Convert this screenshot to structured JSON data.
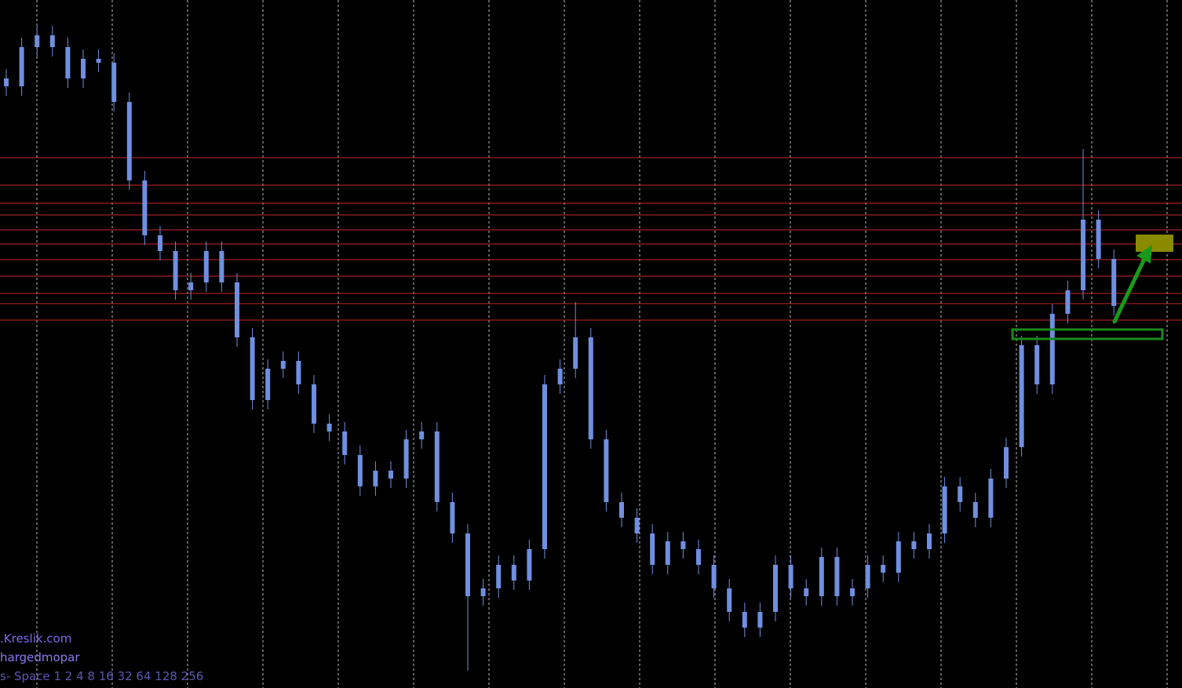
{
  "chart_data": {
    "type": "candlestick",
    "open": [
      777,
      767,
      817,
      832,
      817,
      777,
      802,
      797,
      747,
      647,
      577,
      557,
      507,
      517,
      557,
      517,
      447,
      367,
      407,
      417,
      387,
      337,
      327,
      297,
      257,
      277,
      267,
      317,
      327,
      237,
      197,
      117,
      127,
      157,
      137,
      177,
      387,
      407,
      447,
      317,
      237,
      217,
      197,
      157,
      187,
      177,
      157,
      127,
      97,
      77,
      97,
      157,
      127,
      117,
      167,
      117,
      127,
      157,
      147,
      187,
      177,
      197,
      257,
      237,
      217,
      267,
      307,
      437,
      387,
      477,
      507,
      597,
      547
    ],
    "high": [
      789,
      829,
      844,
      844,
      829,
      814,
      814,
      809,
      759,
      659,
      589,
      569,
      529,
      569,
      569,
      529,
      459,
      419,
      429,
      429,
      399,
      349,
      339,
      309,
      289,
      289,
      329,
      339,
      339,
      249,
      209,
      139,
      169,
      169,
      189,
      399,
      419,
      492,
      459,
      329,
      249,
      229,
      209,
      199,
      199,
      189,
      169,
      139,
      109,
      109,
      169,
      169,
      139,
      179,
      179,
      139,
      169,
      169,
      199,
      199,
      209,
      269,
      269,
      249,
      279,
      319,
      449,
      449,
      489,
      519,
      687,
      609,
      559
    ],
    "low": [
      755,
      755,
      805,
      805,
      765,
      765,
      785,
      735,
      635,
      565,
      545,
      495,
      495,
      505,
      505,
      435,
      355,
      355,
      395,
      375,
      325,
      315,
      285,
      245,
      245,
      255,
      255,
      305,
      225,
      185,
      22,
      105,
      115,
      125,
      125,
      165,
      375,
      395,
      305,
      225,
      205,
      185,
      145,
      145,
      165,
      145,
      115,
      85,
      65,
      65,
      85,
      115,
      105,
      105,
      105,
      105,
      115,
      135,
      135,
      165,
      165,
      185,
      225,
      205,
      205,
      255,
      295,
      375,
      375,
      465,
      495,
      535,
      475
    ],
    "close": [
      767,
      817,
      832,
      817,
      777,
      802,
      797,
      747,
      647,
      577,
      557,
      507,
      517,
      557,
      517,
      447,
      367,
      407,
      417,
      387,
      337,
      327,
      297,
      257,
      277,
      267,
      317,
      327,
      237,
      197,
      117,
      127,
      157,
      137,
      177,
      387,
      407,
      447,
      317,
      237,
      217,
      197,
      157,
      187,
      177,
      157,
      127,
      97,
      77,
      97,
      157,
      127,
      117,
      167,
      117,
      127,
      157,
      147,
      187,
      177,
      197,
      257,
      237,
      217,
      267,
      307,
      437,
      387,
      477,
      507,
      597,
      547,
      487
    ],
    "color": "#6f8fe0",
    "ylim": [
      0,
      877
    ],
    "grid": true,
    "levels": [
      676,
      641,
      618,
      603,
      584,
      566,
      546,
      525,
      503,
      490,
      469
    ],
    "level_color": "#c62828",
    "annotations": [
      ".Kreslik.com",
      "hargedmopar",
      "s- Space 1 2 4 8 16 32 64 128 256"
    ]
  }
}
